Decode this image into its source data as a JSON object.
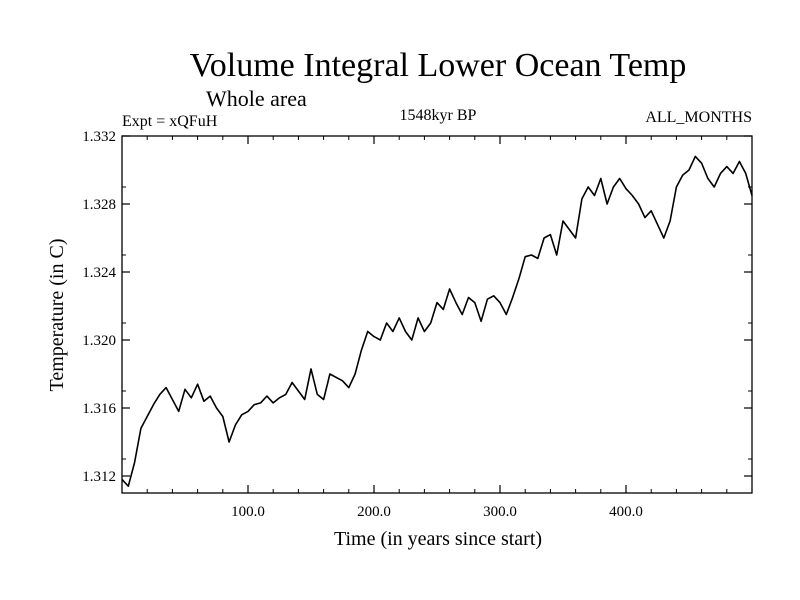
{
  "chart_data": {
    "type": "line",
    "title": "Volume Integral Lower Ocean Temp",
    "subtitle": "Whole area",
    "experiment": "Expt = xQFuH",
    "period": "1548kyr BP",
    "months": "ALL_MONTHS",
    "xlabel": "Time (in years since start)",
    "ylabel": "Temperature (in C)",
    "xlim": [
      0,
      500
    ],
    "ylim": [
      1.311,
      1.332
    ],
    "x_ticks": [
      100,
      200,
      300,
      400
    ],
    "x_tick_labels": [
      "100.0",
      "200.0",
      "300.0",
      "400.0"
    ],
    "y_ticks": [
      1.312,
      1.316,
      1.32,
      1.324,
      1.328,
      1.332
    ],
    "y_tick_labels": [
      "1.312",
      "1.316",
      "1.320",
      "1.324",
      "1.328",
      "1.332"
    ],
    "series": [
      {
        "name": "Volume Integral Lower Ocean Temp",
        "x": [
          0,
          5,
          10,
          15,
          20,
          25,
          30,
          35,
          40,
          45,
          50,
          55,
          60,
          65,
          70,
          75,
          80,
          85,
          90,
          95,
          100,
          105,
          110,
          115,
          120,
          125,
          130,
          135,
          140,
          145,
          150,
          155,
          160,
          165,
          170,
          175,
          180,
          185,
          190,
          195,
          200,
          205,
          210,
          215,
          220,
          225,
          230,
          235,
          240,
          245,
          250,
          255,
          260,
          265,
          270,
          275,
          280,
          285,
          290,
          295,
          300,
          305,
          310,
          315,
          320,
          325,
          330,
          335,
          340,
          345,
          350,
          355,
          360,
          365,
          370,
          375,
          380,
          385,
          390,
          395,
          400,
          405,
          410,
          415,
          420,
          425,
          430,
          435,
          440,
          445,
          450,
          455,
          460,
          465,
          470,
          475,
          480,
          485,
          490,
          495,
          500
        ],
        "values": [
          1.3118,
          1.3114,
          1.3128,
          1.3148,
          1.3155,
          1.3162,
          1.3168,
          1.3172,
          1.3165,
          1.3158,
          1.3171,
          1.3166,
          1.3174,
          1.3164,
          1.3167,
          1.316,
          1.3155,
          1.314,
          1.315,
          1.3156,
          1.3158,
          1.3162,
          1.3163,
          1.3167,
          1.3163,
          1.3166,
          1.3168,
          1.3175,
          1.317,
          1.3165,
          1.3183,
          1.3168,
          1.3165,
          1.318,
          1.3178,
          1.3176,
          1.3172,
          1.318,
          1.3194,
          1.3205,
          1.3202,
          1.32,
          1.321,
          1.3205,
          1.3213,
          1.3205,
          1.32,
          1.3213,
          1.3205,
          1.321,
          1.3222,
          1.3218,
          1.323,
          1.3222,
          1.3215,
          1.3225,
          1.3222,
          1.3211,
          1.3224,
          1.3226,
          1.3222,
          1.3215,
          1.3225,
          1.3236,
          1.3249,
          1.325,
          1.3248,
          1.326,
          1.3262,
          1.325,
          1.327,
          1.3265,
          1.326,
          1.3283,
          1.329,
          1.3285,
          1.3295,
          1.328,
          1.329,
          1.3295,
          1.3289,
          1.3285,
          1.328,
          1.3272,
          1.3276,
          1.3268,
          1.326,
          1.327,
          1.329,
          1.3297,
          1.33,
          1.3308,
          1.3304,
          1.3295,
          1.329,
          1.3298,
          1.3302,
          1.3298,
          1.3305,
          1.3298,
          1.3285
        ]
      }
    ]
  }
}
